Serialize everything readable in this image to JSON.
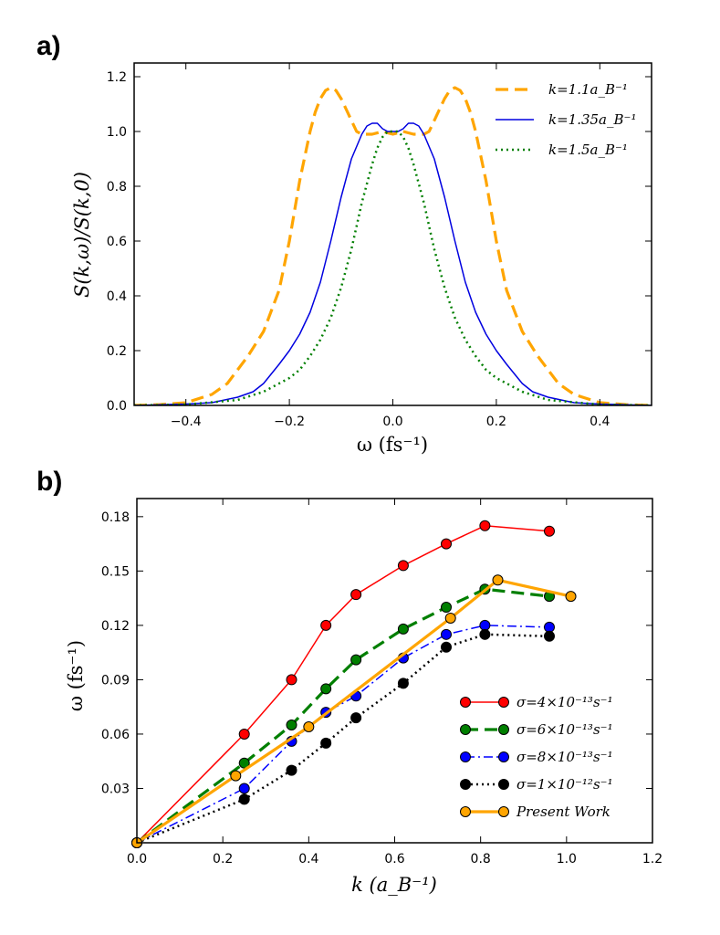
{
  "chart_data": [
    {
      "panel": "a)",
      "type": "line",
      "xlabel": "ω (fs⁻¹)",
      "ylabel": "S(k,ω)/S(k,0)",
      "xlim": [
        -0.5,
        0.5
      ],
      "ylim": [
        0.0,
        1.25
      ],
      "xticks": [
        "−0.4",
        "−0.2",
        "0.0",
        "0.2",
        "0.4"
      ],
      "yticks": [
        "0.0",
        "0.2",
        "0.4",
        "0.6",
        "0.8",
        "1.0",
        "1.2"
      ],
      "legend_position": "top-right",
      "series": [
        {
          "name": "k=1.1a_B⁻¹",
          "color": "#FFA500",
          "style": "dashed",
          "x": [
            -0.5,
            -0.45,
            -0.4,
            -0.35,
            -0.32,
            -0.3,
            -0.28,
            -0.25,
            -0.22,
            -0.2,
            -0.18,
            -0.16,
            -0.15,
            -0.14,
            -0.13,
            -0.12,
            -0.11,
            -0.1,
            -0.09,
            -0.08,
            -0.07,
            -0.06,
            -0.04,
            -0.02,
            0.0,
            0.02,
            0.04,
            0.06,
            0.07,
            0.08,
            0.09,
            0.1,
            0.11,
            0.12,
            0.13,
            0.14,
            0.15,
            0.16,
            0.18,
            0.2,
            0.22,
            0.25,
            0.28,
            0.3,
            0.32,
            0.35,
            0.4,
            0.45,
            0.5
          ],
          "y": [
            0.0,
            0.003,
            0.01,
            0.04,
            0.08,
            0.13,
            0.18,
            0.27,
            0.42,
            0.6,
            0.82,
            1.0,
            1.07,
            1.12,
            1.15,
            1.16,
            1.15,
            1.12,
            1.08,
            1.04,
            1.0,
            0.99,
            0.99,
            1.0,
            0.99,
            1.0,
            0.99,
            0.99,
            1.0,
            1.04,
            1.08,
            1.12,
            1.15,
            1.16,
            1.15,
            1.12,
            1.07,
            1.0,
            0.82,
            0.6,
            0.42,
            0.27,
            0.18,
            0.13,
            0.08,
            0.04,
            0.01,
            0.003,
            0.0
          ]
        },
        {
          "name": "k=1.35a_B⁻¹",
          "color": "#0000E0",
          "style": "solid",
          "x": [
            -0.5,
            -0.4,
            -0.35,
            -0.3,
            -0.27,
            -0.25,
            -0.22,
            -0.2,
            -0.18,
            -0.16,
            -0.14,
            -0.12,
            -0.1,
            -0.08,
            -0.06,
            -0.05,
            -0.04,
            -0.03,
            -0.02,
            -0.01,
            0.0,
            0.01,
            0.02,
            0.03,
            0.04,
            0.05,
            0.06,
            0.08,
            0.1,
            0.12,
            0.14,
            0.16,
            0.18,
            0.2,
            0.22,
            0.25,
            0.27,
            0.3,
            0.35,
            0.4,
            0.5
          ],
          "y": [
            0.0,
            0.005,
            0.01,
            0.03,
            0.05,
            0.08,
            0.15,
            0.2,
            0.26,
            0.34,
            0.45,
            0.6,
            0.76,
            0.9,
            0.99,
            1.02,
            1.03,
            1.03,
            1.01,
            1.0,
            1.0,
            1.0,
            1.01,
            1.03,
            1.03,
            1.02,
            0.99,
            0.9,
            0.76,
            0.6,
            0.45,
            0.34,
            0.26,
            0.2,
            0.15,
            0.08,
            0.05,
            0.03,
            0.01,
            0.005,
            0.0
          ]
        },
        {
          "name": "k=1.5a_B⁻¹",
          "color": "#007F00",
          "style": "dotted",
          "x": [
            -0.5,
            -0.4,
            -0.3,
            -0.25,
            -0.2,
            -0.18,
            -0.16,
            -0.14,
            -0.12,
            -0.1,
            -0.08,
            -0.06,
            -0.04,
            -0.03,
            -0.02,
            -0.01,
            0.0,
            0.01,
            0.02,
            0.03,
            0.04,
            0.06,
            0.08,
            0.1,
            0.12,
            0.14,
            0.16,
            0.18,
            0.2,
            0.25,
            0.3,
            0.4,
            0.5
          ],
          "y": [
            0.0,
            0.003,
            0.02,
            0.05,
            0.1,
            0.13,
            0.18,
            0.24,
            0.32,
            0.43,
            0.57,
            0.74,
            0.88,
            0.94,
            0.98,
            1.0,
            1.0,
            1.0,
            0.98,
            0.94,
            0.88,
            0.74,
            0.57,
            0.43,
            0.32,
            0.24,
            0.18,
            0.13,
            0.1,
            0.05,
            0.02,
            0.003,
            0.0
          ]
        }
      ]
    },
    {
      "panel": "b)",
      "type": "line",
      "xlabel": "k (a_B⁻¹)",
      "ylabel": "ω (fs⁻¹)",
      "xlim": [
        0.0,
        1.2
      ],
      "ylim": [
        0.0,
        0.19
      ],
      "xticks": [
        "0.0",
        "0.2",
        "0.4",
        "0.6",
        "0.8",
        "1.0",
        "1.2"
      ],
      "yticks": [
        "0.03",
        "0.06",
        "0.09",
        "0.12",
        "0.15",
        "0.18"
      ],
      "legend_position": "lower-right",
      "series": [
        {
          "name": "σ=4×10⁻¹³s⁻¹",
          "color": "#FF0000",
          "style": "solid",
          "x": [
            0.0,
            0.25,
            0.36,
            0.44,
            0.51,
            0.62,
            0.72,
            0.81,
            0.96
          ],
          "y": [
            0.0,
            0.06,
            0.09,
            0.12,
            0.137,
            0.153,
            0.165,
            0.175,
            0.172
          ]
        },
        {
          "name": "σ=6×10⁻¹³s⁻¹",
          "color": "#007F00",
          "style": "dashed",
          "x": [
            0.0,
            0.25,
            0.36,
            0.44,
            0.51,
            0.62,
            0.72,
            0.81,
            0.96
          ],
          "y": [
            0.0,
            0.044,
            0.065,
            0.085,
            0.101,
            0.118,
            0.13,
            0.14,
            0.136
          ]
        },
        {
          "name": "σ=8×10⁻¹³s⁻¹",
          "color": "#0000FF",
          "style": "dashdot",
          "x": [
            0.0,
            0.25,
            0.36,
            0.44,
            0.51,
            0.62,
            0.72,
            0.81,
            0.96
          ],
          "y": [
            0.0,
            0.03,
            0.056,
            0.072,
            0.081,
            0.102,
            0.115,
            0.12,
            0.119
          ]
        },
        {
          "name": "σ=1×10⁻¹²s⁻¹",
          "color": "#000000",
          "style": "dotted",
          "x": [
            0.0,
            0.25,
            0.36,
            0.44,
            0.51,
            0.62,
            0.72,
            0.81,
            0.96
          ],
          "y": [
            0.0,
            0.024,
            0.04,
            0.055,
            0.069,
            0.088,
            0.108,
            0.115,
            0.114
          ]
        },
        {
          "name": "Present Work",
          "color": "#FFA500",
          "style": "solid-thick",
          "x": [
            0.0,
            0.23,
            0.4,
            0.73,
            0.84,
            1.01
          ],
          "y": [
            0.0,
            0.037,
            0.064,
            0.124,
            0.145,
            0.136
          ]
        }
      ]
    }
  ]
}
